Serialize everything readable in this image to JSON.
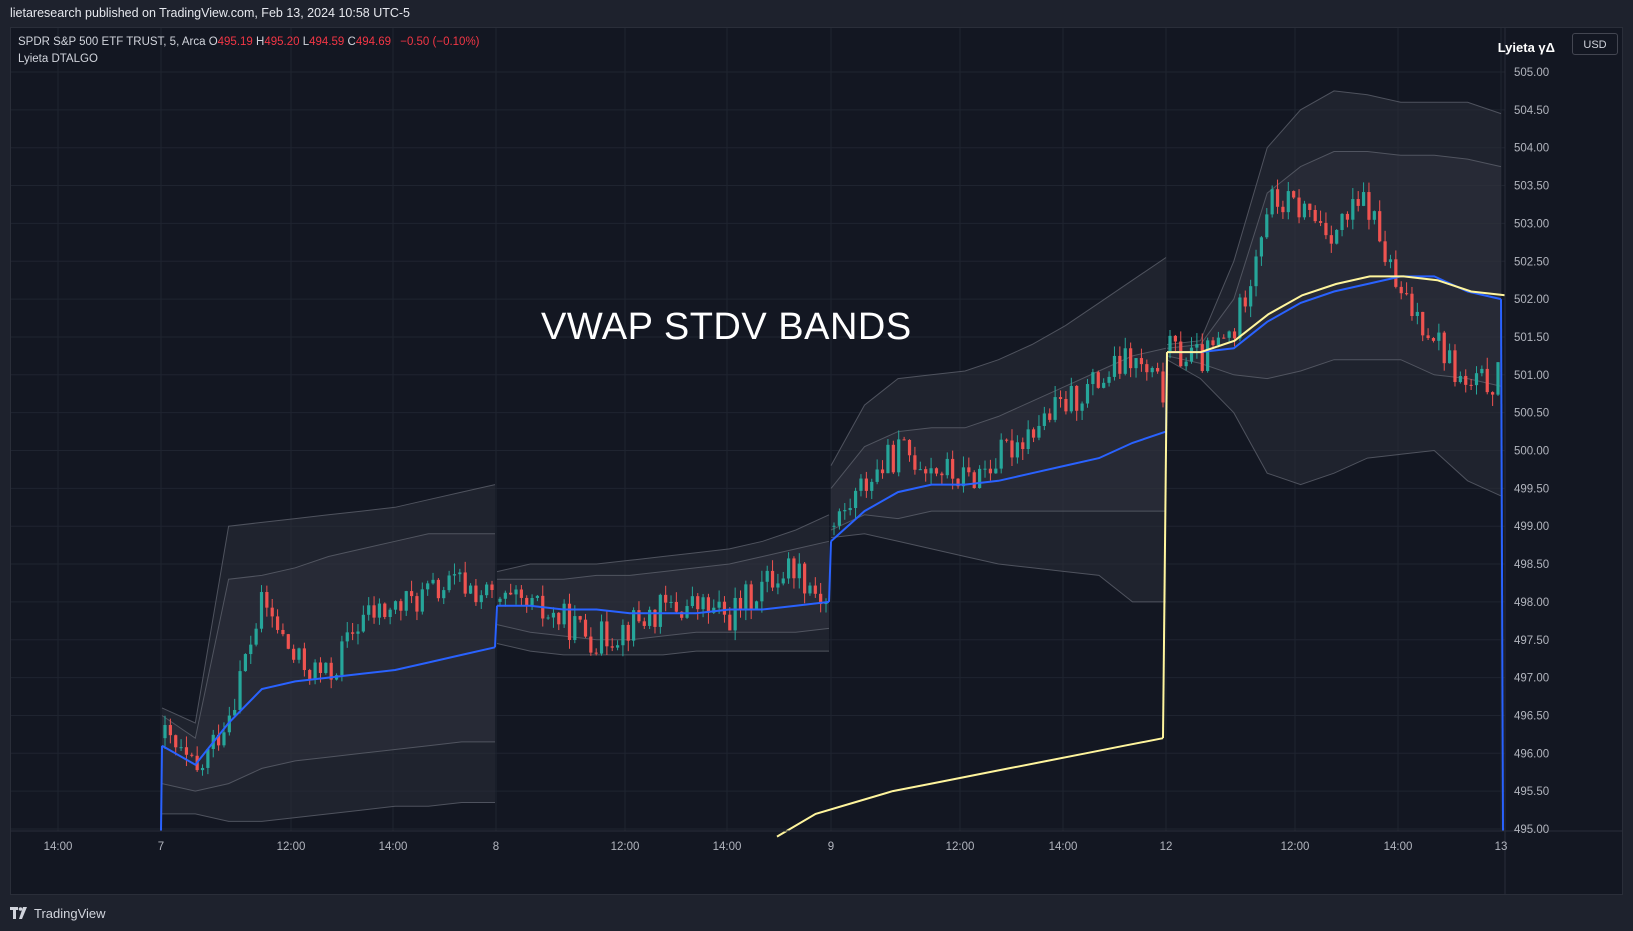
{
  "header": {
    "published_text": "lietaresearch published on TradingView.com, Feb 13, 2024 10:58 UTC-5"
  },
  "legend": {
    "symbol": "SPDR S&P 500 ETF TRUST, 5, Arca",
    "open_label": "O",
    "open": "495.19",
    "high_label": "H",
    "high": "495.20",
    "low_label": "L",
    "low": "494.59",
    "close_label": "C",
    "close": "494.69",
    "change": "−0.50 (−0.10%)",
    "indicator": "Lyieta DTALGO"
  },
  "currency_badge": "USD",
  "brand_label": "Lyieta γΔ",
  "overlay_title": "VWAP STDV BANDS",
  "footer": {
    "brand": "TradingView"
  },
  "colors": {
    "background": "#131722",
    "up_candle": "#26a69a",
    "down_candle": "#ef5350",
    "vwap_line": "#2962ff",
    "yellow_line": "#fff59d",
    "band_line": "#5d606b",
    "band_fill": "#2a2e39"
  },
  "chart_data": {
    "type": "line",
    "symbol": "SPY",
    "interval": "5",
    "ylim": [
      494.9,
      505.3
    ],
    "yticks": [
      "505.00",
      "504.50",
      "504.00",
      "503.50",
      "503.00",
      "502.50",
      "502.00",
      "501.50",
      "501.00",
      "500.50",
      "500.00",
      "499.50",
      "499.00",
      "498.50",
      "498.00",
      "497.50",
      "497.00",
      "496.50",
      "496.00",
      "495.50",
      "495.00"
    ],
    "xticks": [
      "14:00",
      "7",
      "12:00",
      "14:00",
      "8",
      "12:00",
      "14:00",
      "9",
      "12:00",
      "14:00",
      "12",
      "12:00",
      "14:00",
      "13"
    ],
    "grid": true,
    "sessions": [
      {
        "day": "7",
        "vwap": [
          496.1,
          495.85,
          496.4,
          496.85,
          496.95,
          497.0,
          497.05,
          497.1,
          497.2,
          497.3,
          497.4
        ],
        "upper1": [
          496.5,
          496.2,
          498.3,
          498.35,
          498.45,
          498.6,
          498.7,
          498.8,
          498.9,
          498.9,
          498.9
        ],
        "lower1": [
          495.6,
          495.5,
          495.6,
          495.8,
          495.9,
          495.95,
          496.0,
          496.05,
          496.1,
          496.15,
          496.15
        ],
        "upper2": [
          496.6,
          496.4,
          499.0,
          499.05,
          499.1,
          499.15,
          499.2,
          499.25,
          499.35,
          499.45,
          499.55
        ],
        "lower2": [
          495.2,
          495.2,
          495.1,
          495.1,
          495.15,
          495.2,
          495.25,
          495.3,
          495.3,
          495.35,
          495.35
        ],
        "close": [
          496.2,
          495.7,
          496.6,
          498.0,
          497.2,
          497.0,
          497.8,
          497.9,
          498.1,
          498.25,
          498.05
        ]
      },
      {
        "day": "8",
        "vwap": [
          497.95,
          497.95,
          497.9,
          497.9,
          497.85,
          497.85,
          497.85,
          497.9,
          497.9,
          497.95,
          498.0
        ],
        "upper1": [
          498.3,
          498.3,
          498.3,
          498.35,
          498.35,
          498.4,
          498.45,
          498.5,
          498.6,
          498.7,
          498.8
        ],
        "lower1": [
          497.7,
          497.6,
          497.55,
          497.5,
          497.5,
          497.55,
          497.6,
          497.6,
          497.6,
          497.6,
          497.65
        ],
        "upper2": [
          498.4,
          498.5,
          498.5,
          498.5,
          498.55,
          498.6,
          498.65,
          498.7,
          498.8,
          498.95,
          499.15
        ],
        "lower2": [
          497.45,
          497.35,
          497.3,
          497.3,
          497.3,
          497.3,
          497.35,
          497.35,
          497.35,
          497.35,
          497.35
        ],
        "close": [
          498.0,
          497.9,
          497.75,
          497.5,
          497.7,
          497.9,
          497.95,
          497.8,
          498.2,
          498.5,
          498.0
        ]
      },
      {
        "day": "9",
        "vwap": [
          498.8,
          499.2,
          499.45,
          499.55,
          499.55,
          499.6,
          499.7,
          499.8,
          499.9,
          500.1,
          500.25
        ],
        "upper1": [
          499.5,
          500.05,
          500.25,
          500.3,
          500.3,
          500.45,
          500.65,
          500.85,
          501.05,
          501.25,
          501.35
        ],
        "lower1": [
          498.95,
          499.15,
          499.1,
          499.2,
          499.2,
          499.2,
          499.2,
          499.2,
          499.2,
          499.2,
          499.2
        ],
        "upper2": [
          499.8,
          500.6,
          500.95,
          501.0,
          501.05,
          501.2,
          501.4,
          501.65,
          501.95,
          502.25,
          502.55
        ],
        "lower2": [
          498.85,
          498.9,
          498.8,
          498.7,
          498.6,
          498.5,
          498.45,
          498.4,
          498.35,
          498.0,
          498.0
        ],
        "close": [
          499.0,
          499.6,
          500.0,
          499.8,
          499.6,
          499.9,
          500.3,
          500.6,
          500.9,
          501.2,
          500.8
        ]
      },
      {
        "day": "12",
        "vwap": [
          501.3,
          501.3,
          501.35,
          501.7,
          501.95,
          502.1,
          502.2,
          502.3,
          502.3,
          502.1,
          502.0
        ],
        "upper1": [
          501.35,
          501.4,
          502.0,
          503.4,
          503.75,
          503.95,
          503.95,
          503.9,
          503.9,
          503.85,
          503.75
        ],
        "lower1": [
          501.25,
          501.15,
          501.0,
          500.95,
          501.05,
          501.2,
          501.2,
          501.2,
          501.0,
          500.95,
          500.85
        ],
        "upper2": [
          501.4,
          501.45,
          502.5,
          504.0,
          504.5,
          504.75,
          504.7,
          504.6,
          504.6,
          504.6,
          504.45
        ],
        "lower2": [
          501.2,
          500.95,
          500.5,
          499.7,
          499.55,
          499.7,
          499.9,
          499.95,
          500.0,
          499.6,
          499.4
        ],
        "close": [
          501.3,
          501.2,
          501.6,
          503.3,
          503.2,
          502.9,
          503.3,
          502.0,
          501.6,
          500.8,
          500.95
        ]
      }
    ],
    "yellow_line": [
      {
        "day": "9",
        "values": [
          494.9,
          495.2,
          495.35,
          495.5,
          495.6,
          495.7,
          495.8,
          495.9,
          496.0,
          496.1,
          496.2
        ]
      },
      {
        "day": "12",
        "values": [
          501.3,
          501.3,
          501.45,
          501.8,
          502.05,
          502.2,
          502.3,
          502.3,
          502.25,
          502.1,
          502.05
        ]
      }
    ],
    "last_price": 494.69
  }
}
